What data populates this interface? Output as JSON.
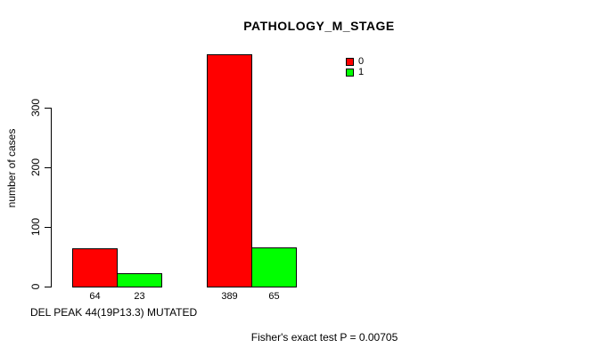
{
  "chart_data": {
    "type": "bar",
    "title": "PATHOLOGY_M_STAGE",
    "ylabel": "number of cases",
    "xlabel": "DEL PEAK 44(19P13.3) MUTATED",
    "footnote": "Fisher's exact test P = 0.00705",
    "yticks": [
      0,
      100,
      200,
      300
    ],
    "ylim": [
      0,
      390
    ],
    "grid": "off",
    "legend_position": "top-right-inside",
    "legend": [
      {
        "label": "0",
        "color": "#ff0000"
      },
      {
        "label": "1",
        "color": "#00ff00"
      }
    ],
    "groups": [
      {
        "group_name": "left-group",
        "bars": [
          {
            "series": "0",
            "value": 64,
            "label": "64",
            "color": "#ff0000"
          },
          {
            "series": "1",
            "value": 23,
            "label": "23",
            "color": "#00ff00"
          }
        ]
      },
      {
        "group_name": "right-group",
        "bars": [
          {
            "series": "0",
            "value": 389,
            "label": "389",
            "color": "#ff0000"
          },
          {
            "series": "1",
            "value": 65,
            "label": "65",
            "color": "#00ff00"
          }
        ]
      }
    ]
  }
}
